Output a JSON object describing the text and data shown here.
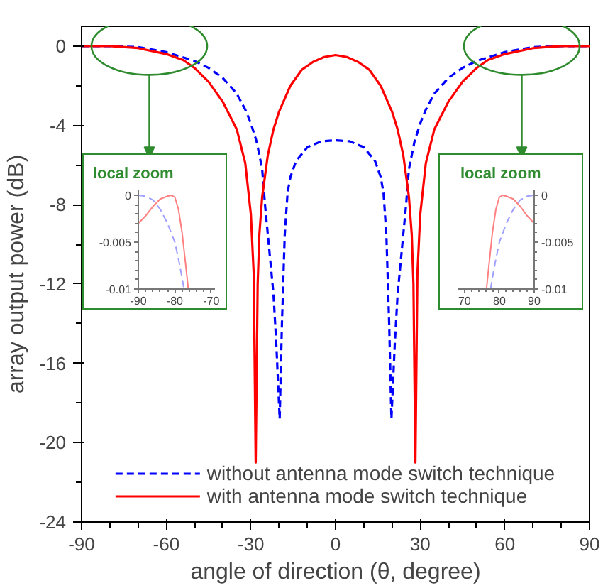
{
  "chart_data": [
    {
      "type": "line",
      "xlabel": "angle of direction (θ, degree)",
      "ylabel": "array output power (dB)",
      "xlim": [
        -90,
        90
      ],
      "xticks": [
        -90,
        -60,
        -30,
        0,
        30,
        60,
        90
      ],
      "ylim": [
        -24,
        1
      ],
      "yticks": [
        -24,
        -20,
        -16,
        -12,
        -8,
        -4,
        0
      ],
      "grid": false,
      "legend": "bottom",
      "series": [
        {
          "name": "without antenna mode switch technique",
          "color": "#0000ff",
          "line_style": "dashed",
          "x": [
            -90,
            -80,
            -70,
            -60,
            -50,
            -45,
            -40,
            -35,
            -32,
            -30,
            -28,
            -26,
            -25,
            -24,
            -22,
            -21,
            -19.8,
            -19,
            -18,
            -17,
            -16,
            -14,
            -10,
            -5,
            0,
            5,
            10,
            14,
            16,
            17,
            18,
            19,
            19.8,
            21,
            22,
            24,
            25,
            26,
            28,
            30,
            32,
            35,
            40,
            45,
            50,
            60,
            70,
            80,
            90
          ],
          "values": [
            0,
            0,
            -0.05,
            -0.3,
            -0.75,
            -1.1,
            -1.6,
            -2.4,
            -3.2,
            -3.9,
            -4.8,
            -6.2,
            -8,
            -9.5,
            -12.5,
            -15,
            -18.8,
            -14,
            -9.5,
            -7.4,
            -6.6,
            -5.8,
            -5.1,
            -4.8,
            -4.75,
            -4.8,
            -5.1,
            -5.8,
            -6.6,
            -7.4,
            -9.5,
            -14,
            -18.8,
            -15,
            -12.5,
            -9.5,
            -8,
            -6.2,
            -4.8,
            -3.9,
            -3.2,
            -2.4,
            -1.6,
            -1.1,
            -0.75,
            -0.3,
            -0.05,
            0,
            0
          ]
        },
        {
          "name": "with antenna mode switch technique",
          "color": "#ff0000",
          "line_style": "solid",
          "x": [
            -90,
            -80,
            -70,
            -60,
            -54,
            -50,
            -45,
            -40,
            -35,
            -32,
            -30,
            -29,
            -28.3,
            -27.6,
            -27,
            -26,
            -24,
            -22,
            -20,
            -16,
            -12,
            -8,
            -4,
            0,
            4,
            8,
            12,
            16,
            20,
            22,
            24,
            26,
            27,
            27.6,
            28.3,
            29,
            30,
            32,
            35,
            40,
            45,
            50,
            54,
            60,
            70,
            80,
            90
          ],
          "values": [
            0,
            0,
            -0.1,
            -0.4,
            -0.7,
            -1.1,
            -1.8,
            -2.8,
            -4.2,
            -5.9,
            -8.5,
            -11.5,
            -21,
            -12,
            -9.5,
            -7.6,
            -5.5,
            -4.2,
            -3.3,
            -2,
            -1.2,
            -0.8,
            -0.55,
            -0.45,
            -0.55,
            -0.8,
            -1.2,
            -2,
            -3.3,
            -4.2,
            -5.5,
            -7.6,
            -9.5,
            -12,
            -21,
            -11.5,
            -8.5,
            -5.9,
            -4.2,
            -2.8,
            -1.8,
            -1.1,
            -0.7,
            -0.4,
            -0.1,
            0,
            0
          ]
        }
      ]
    },
    {
      "type": "line",
      "title": "local zoom",
      "xlim": [
        -90,
        -69
      ],
      "xticks": [
        -90,
        -80,
        -70
      ],
      "ylim": [
        -0.01,
        0.0006
      ],
      "yticks": [
        -0.01,
        -0.005,
        0
      ],
      "grid": false,
      "series": [
        {
          "color": "#a0a0ff",
          "line_style": "dashed",
          "x": [
            -90,
            -88,
            -86,
            -84,
            -82,
            -80,
            -79,
            -78,
            -77.5
          ],
          "values": [
            0,
            -0.0001,
            -0.0005,
            -0.0015,
            -0.003,
            -0.005,
            -0.0068,
            -0.0088,
            -0.01
          ]
        },
        {
          "color": "#ff8080",
          "line_style": "solid",
          "x": [
            -90,
            -88,
            -86,
            -84,
            -82,
            -81,
            -80,
            -79,
            -78,
            -77,
            -76.3
          ],
          "values": [
            -0.003,
            -0.0022,
            -0.0012,
            -0.0004,
            -0.0001,
            0,
            -0.0002,
            -0.0015,
            -0.004,
            -0.0075,
            -0.01
          ]
        }
      ]
    },
    {
      "type": "line",
      "title": "local zoom",
      "xlim": [
        68,
        90
      ],
      "xticks": [
        70,
        80,
        90
      ],
      "y2lim": [
        -0.01,
        0.0006
      ],
      "y2ticks": [
        -0.01,
        -0.005,
        0
      ],
      "grid": false,
      "series": [
        {
          "color": "#a0a0ff",
          "line_style": "dashed",
          "axis": "y2",
          "x": [
            77.5,
            78,
            79,
            80,
            82,
            84,
            86,
            88,
            90
          ],
          "values": [
            -0.01,
            -0.0088,
            -0.0068,
            -0.005,
            -0.003,
            -0.0015,
            -0.0005,
            -0.0001,
            0
          ]
        },
        {
          "color": "#ff8080",
          "line_style": "solid",
          "axis": "y2",
          "x": [
            76.3,
            77,
            78,
            79,
            80,
            81,
            82,
            84,
            86,
            88,
            90
          ],
          "values": [
            -0.01,
            -0.0075,
            -0.004,
            -0.0015,
            -0.0002,
            0,
            -0.0001,
            -0.0004,
            -0.0012,
            -0.0022,
            -0.003
          ]
        }
      ]
    }
  ]
}
